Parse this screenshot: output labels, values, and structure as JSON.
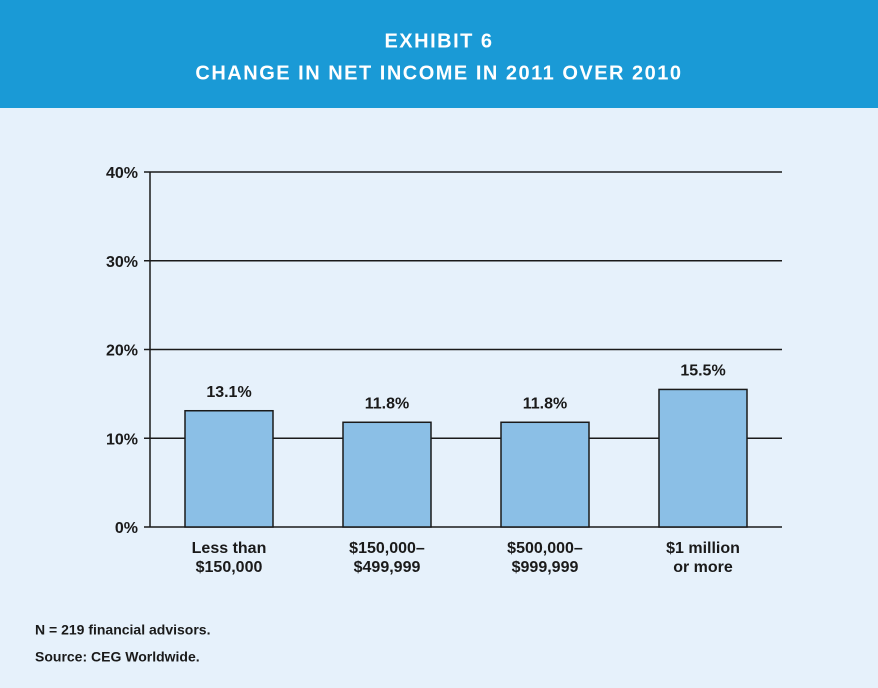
{
  "chart_data": {
    "type": "bar",
    "title": "EXHIBIT 6",
    "subtitle": "CHANGE IN NET INCOME IN 2011 OVER 2010",
    "categories": [
      [
        "Less than",
        "$150,000"
      ],
      [
        "$150,000–",
        "$499,999"
      ],
      [
        "$500,000–",
        "$999,999"
      ],
      [
        "$1 million",
        "or more"
      ]
    ],
    "values": [
      13.1,
      11.8,
      11.8,
      15.5
    ],
    "value_labels": [
      "13.1%",
      "11.8%",
      "11.8%",
      "15.5%"
    ],
    "color": "#8bbfe6",
    "ylim": [
      0,
      40
    ],
    "yticks": [
      {
        "value": 0,
        "label": "0%"
      },
      {
        "value": 10,
        "label": "10%"
      },
      {
        "value": 20,
        "label": "20%"
      },
      {
        "value": 30,
        "label": "30%"
      },
      {
        "value": 40,
        "label": "40%"
      }
    ],
    "grid": true,
    "notes": [
      "N = 219 financial advisors.",
      "Source: CEG Worldwide."
    ]
  }
}
